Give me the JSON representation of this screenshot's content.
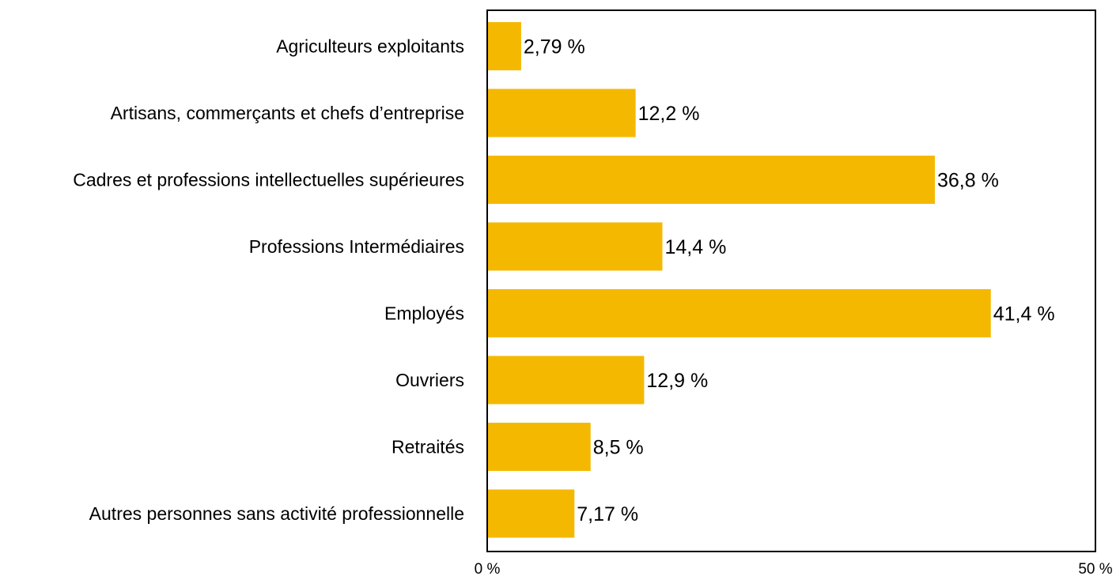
{
  "chart_data": {
    "type": "bar",
    "orientation": "horizontal",
    "categories": [
      "Agriculteurs exploitants",
      "Artisans, commerçants et chefs d’entreprise",
      "Cadres et professions intellectuelles supérieures",
      "Professions Intermédiaires",
      "Employés",
      "Ouvriers",
      "Retraités",
      "Autres personnes sans activité professionnelle"
    ],
    "values": [
      2.79,
      12.2,
      36.8,
      14.4,
      41.4,
      12.9,
      8.5,
      7.17
    ],
    "value_labels": [
      "2,79 %",
      "12,2 %",
      "36,8 %",
      "14,4 %",
      "41,4 %",
      "12,9 %",
      "8,5 %",
      "7,17 %"
    ],
    "xlim": [
      0,
      50
    ],
    "x_ticks": [
      "0 %",
      "50 %"
    ],
    "title": "",
    "xlabel": "",
    "ylabel": "",
    "grid": false,
    "legend": "none",
    "bar_color": "#f5b800",
    "axis_color": "#000000"
  }
}
